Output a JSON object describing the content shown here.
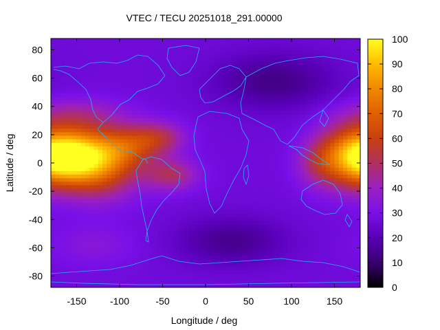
{
  "chart_data": {
    "type": "heatmap",
    "title": "VTEC / TECU 20251018_291.00000",
    "xlabel": "Longitude / deg",
    "ylabel": "Latitude / deg",
    "xlim": [
      -180,
      180
    ],
    "ylim": [
      -88,
      88
    ],
    "x_ticks": [
      -150,
      -100,
      -50,
      0,
      50,
      100,
      150
    ],
    "y_ticks": [
      -80,
      -60,
      -40,
      -20,
      0,
      20,
      40,
      60,
      80
    ],
    "colorbar": {
      "range": [
        0,
        100
      ],
      "ticks": [
        0,
        10,
        20,
        30,
        40,
        50,
        60,
        70,
        80,
        90,
        100
      ],
      "colormap": "gnuplot-pm3d (black-purple-red-orange-yellow)"
    },
    "baseline_tecu": 27,
    "anomalies": [
      {
        "lon": -160,
        "lat": 5,
        "width_lon": 28,
        "width_lat": 14,
        "tecu": 61
      },
      {
        "lon": -120,
        "lat": 0,
        "width_lon": 30,
        "width_lat": 16,
        "tecu": 40
      },
      {
        "lon": -90,
        "lat": 12,
        "width_lon": 25,
        "width_lat": 10,
        "tecu": 22
      },
      {
        "lon": -55,
        "lat": 18,
        "width_lon": 22,
        "width_lat": 8,
        "tecu": 22
      },
      {
        "lon": -40,
        "lat": -8,
        "width_lon": 22,
        "width_lat": 8,
        "tecu": 22
      },
      {
        "lon": 165,
        "lat": 5,
        "width_lon": 25,
        "width_lat": 15,
        "tecu": 38
      },
      {
        "lon": 130,
        "lat": 0,
        "width_lon": 18,
        "width_lat": 12,
        "tecu": 15
      },
      {
        "lon": -150,
        "lat": 35,
        "width_lon": 40,
        "width_lat": 8,
        "tecu": 12
      },
      {
        "lon": 80,
        "lat": 58,
        "width_lon": 50,
        "width_lat": 14,
        "tecu": -14
      },
      {
        "lon": 30,
        "lat": -55,
        "width_lon": 45,
        "width_lat": 12,
        "tecu": -13
      },
      {
        "lon": -130,
        "lat": -58,
        "width_lon": 35,
        "width_lat": 10,
        "tecu": 7
      }
    ],
    "coastlines": "world continent outlines (cyan)"
  }
}
